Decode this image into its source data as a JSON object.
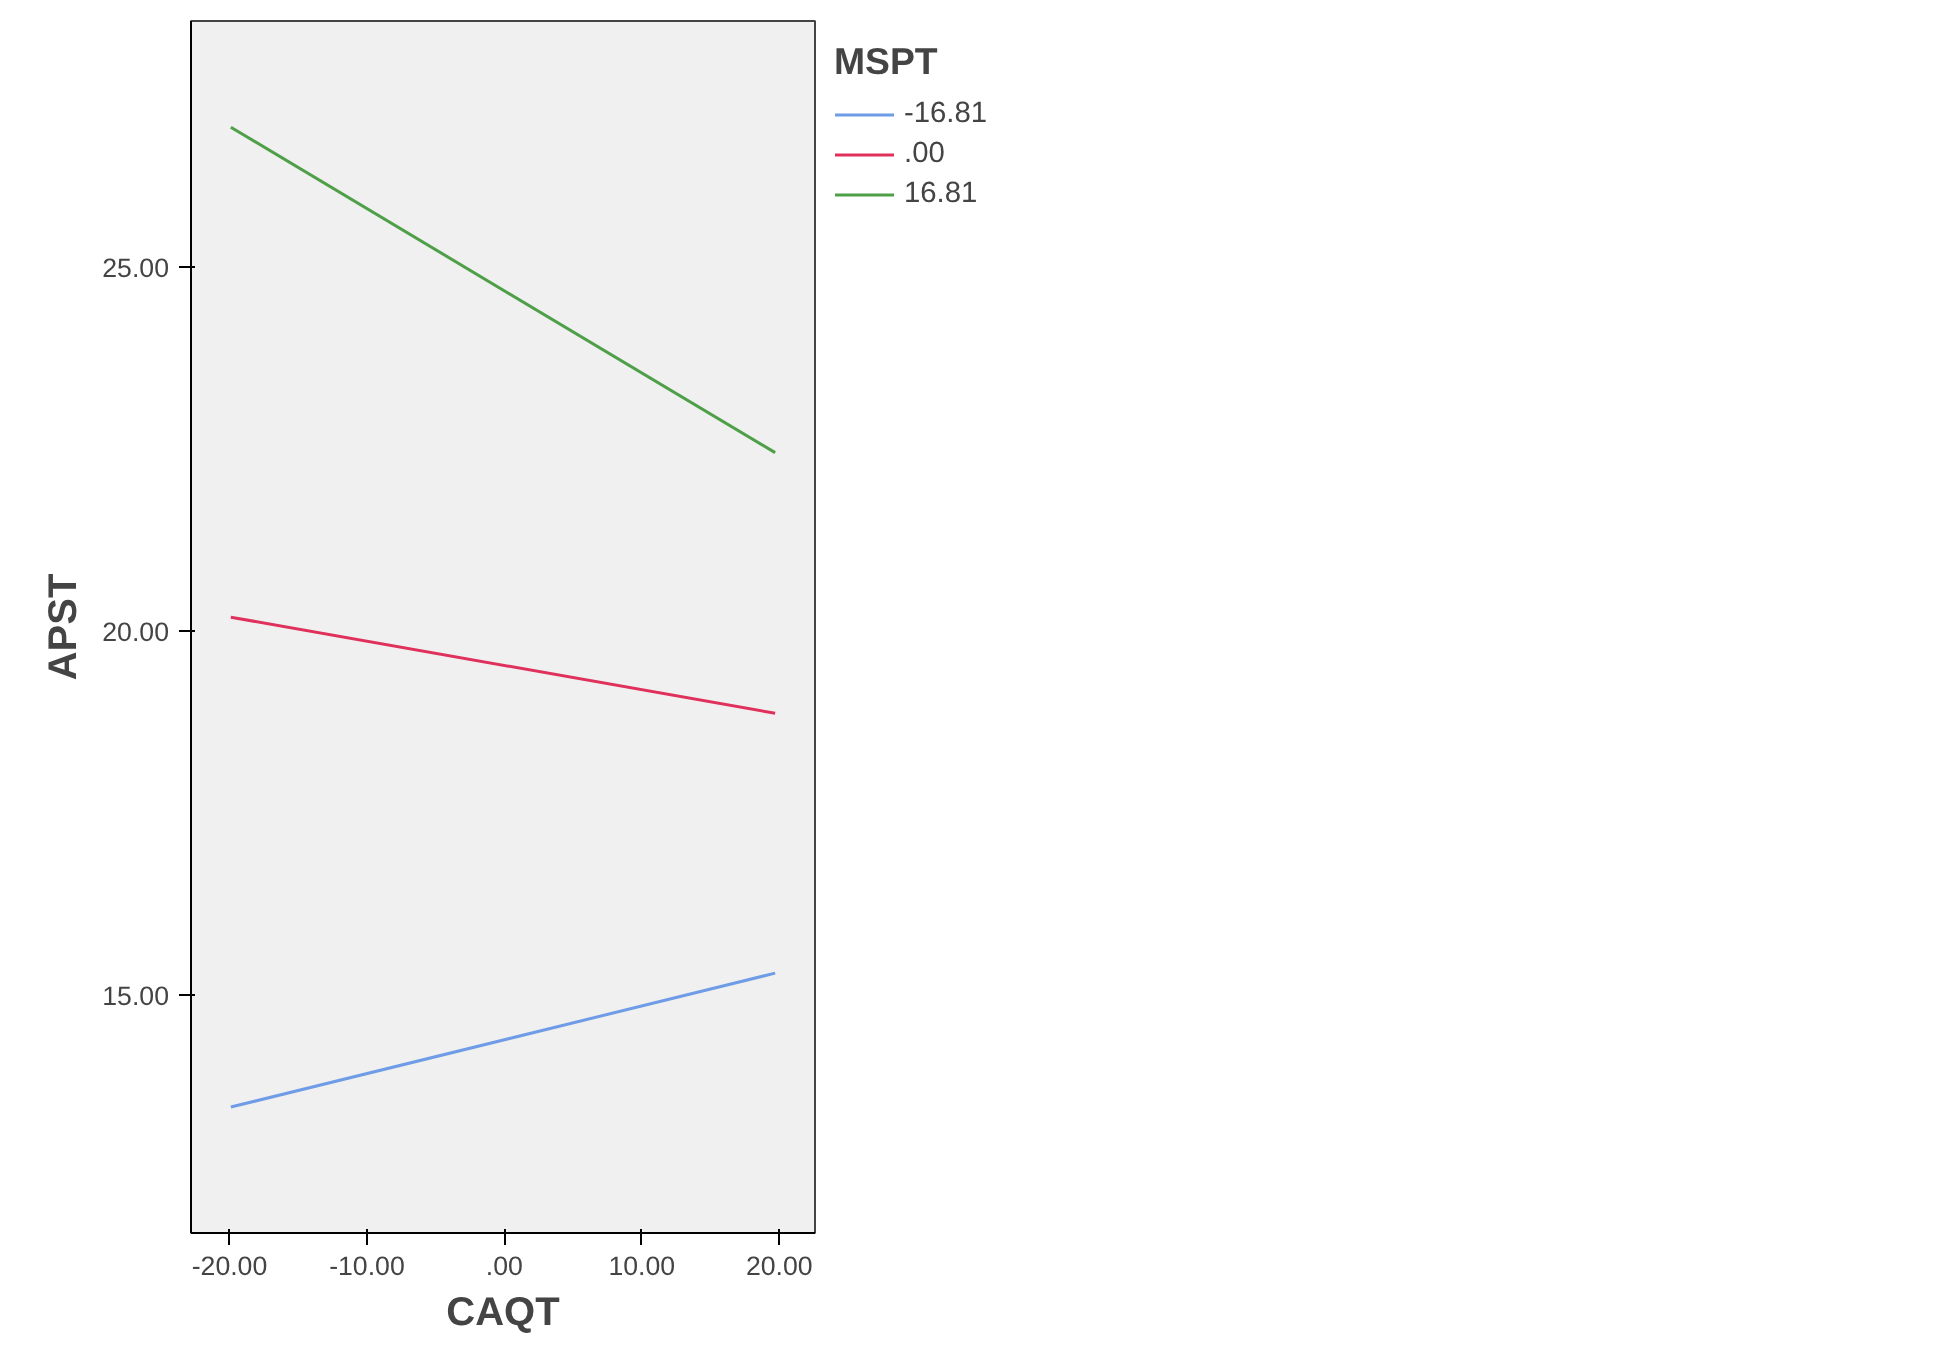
{
  "chart_data": {
    "type": "line",
    "xlabel": "CAQT",
    "ylabel": "APST",
    "legend_title": "MSPT",
    "xlim": [
      -22.8,
      22.6
    ],
    "ylim": [
      11.73,
      28.38
    ],
    "xticks": [
      {
        "value": -20,
        "label": "-20.00"
      },
      {
        "value": -10,
        "label": "-10.00"
      },
      {
        "value": 0,
        "label": ".00"
      },
      {
        "value": 10,
        "label": "10.00"
      },
      {
        "value": 20,
        "label": "20.00"
      }
    ],
    "yticks": [
      {
        "value": 15,
        "label": "15.00"
      },
      {
        "value": 20,
        "label": "20.00"
      },
      {
        "value": 25,
        "label": "25.00"
      }
    ],
    "x": [
      -19.9,
      19.7
    ],
    "series": [
      {
        "name": "-16.81",
        "color": "#6f9ce6",
        "values": [
          13.46,
          15.3
        ]
      },
      {
        "name": ".00",
        "color": "#e0315c",
        "values": [
          20.19,
          18.87
        ]
      },
      {
        "name": "16.81",
        "color": "#4e9f47",
        "values": [
          26.92,
          22.45
        ]
      }
    ],
    "legend": "top right",
    "grid": false,
    "marker": "none",
    "line_style": "solid"
  }
}
